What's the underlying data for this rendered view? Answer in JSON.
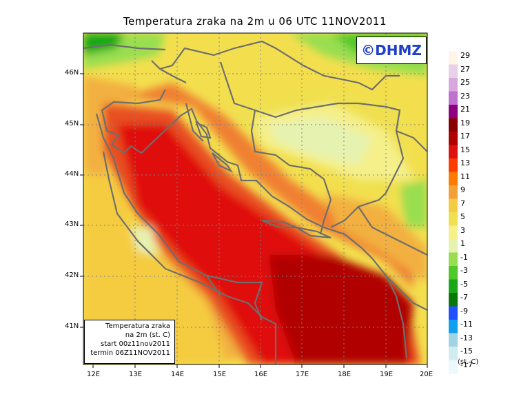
{
  "title": "Temperatura zraka na 2m u 06 UTC 11NOV2011",
  "logo_text": "©DHMZ",
  "info_box": {
    "line1": "Temperatura zraka",
    "line2": "na 2m (st. C)",
    "line3": "start 00z11nov2011",
    "line4": "termin 06Z11NOV2011"
  },
  "lat_labels": [
    "46N",
    "45N",
    "44N",
    "43N",
    "42N",
    "41N"
  ],
  "lon_labels": [
    "12E",
    "13E",
    "14E",
    "15E",
    "16E",
    "17E",
    "18E",
    "19E",
    "20E"
  ],
  "colorbar": {
    "units": "(st. C)",
    "labels": [
      "29",
      "27",
      "25",
      "23",
      "21",
      "19",
      "17",
      "15",
      "13",
      "11",
      "9",
      "7",
      "5",
      "3",
      "1",
      "-1",
      "-3",
      "-5",
      "-7",
      "-9",
      "-11",
      "-13",
      "-15",
      "-17"
    ],
    "colors": [
      "#fff4e8",
      "#e8d0e8",
      "#d8a8dc",
      "#c070d0",
      "#8e0080",
      "#8a0000",
      "#b00000",
      "#e01010",
      "#ff3c00",
      "#ff7a00",
      "#f3a038",
      "#f5cc40",
      "#f0e050",
      "#f5f08a",
      "#e6f2b0",
      "#98de50",
      "#50c828",
      "#18a818",
      "#087808",
      "#2050ff",
      "#10a0f0",
      "#a0d4e4",
      "#d0ecf0",
      "#ecf8fb"
    ]
  },
  "map_data": {
    "lat_range": [
      40.3,
      46.7
    ],
    "lon_range": [
      11.8,
      20.0
    ]
  }
}
